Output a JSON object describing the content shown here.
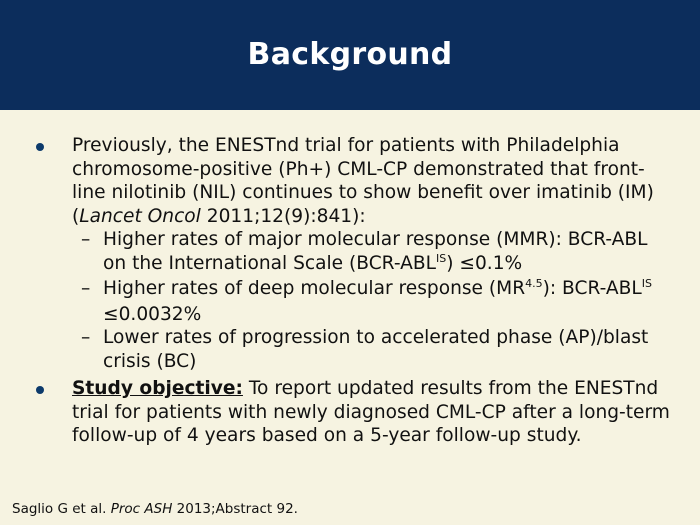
{
  "title": "Background",
  "bullet1": {
    "text_a": "Previously, the ENESTnd trial for patients with Philadelphia chromosome-positive (Ph+) CML-CP demonstrated that front-line nilotinib (NIL) continues to show benefit over imatinib (IM) (",
    "journal": "Lancet Oncol",
    "text_b": " 2011;12(9):841):"
  },
  "sub1": {
    "text_a": "Higher rates of major molecular response (MMR): BCR-ABL on the International Scale (BCR-ABL",
    "sup": "IS",
    "text_b": ") ≤0.1%"
  },
  "sub2": {
    "text_a": "Higher rates of deep molecular response (MR",
    "sup1": "4.5",
    "text_b": "): BCR-ABL",
    "sup2": "IS",
    "text_c": " ≤0.0032%"
  },
  "sub3": {
    "text": "Lower rates of progression to accelerated phase (AP)/blast crisis (BC)"
  },
  "bullet2": {
    "label": "Study objective:",
    "text": " To report updated results from the ENESTnd trial for patients with newly diagnosed CML-CP after a long-term follow-up of 4 years based on a 5-year follow-up study."
  },
  "dash": "–",
  "footer": {
    "text_a": "Saglio G et al. ",
    "journal": "Proc ASH",
    "text_b": " 2013;Abstract 92."
  }
}
